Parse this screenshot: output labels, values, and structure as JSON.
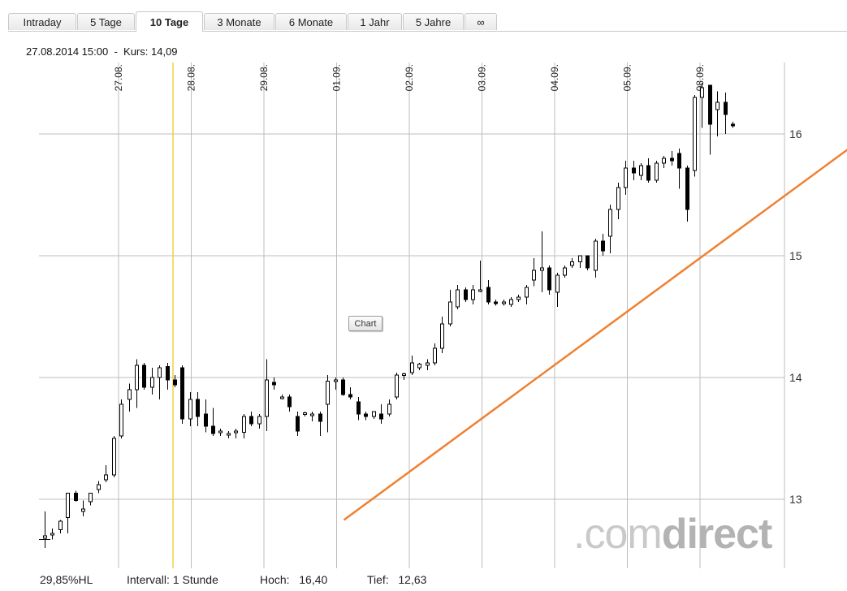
{
  "tabs": [
    {
      "label": "Intraday",
      "active": false
    },
    {
      "label": "5 Tage",
      "active": false
    },
    {
      "label": "10 Tage",
      "active": true
    },
    {
      "label": "3 Monate",
      "active": false
    },
    {
      "label": "6 Monate",
      "active": false
    },
    {
      "label": "1 Jahr",
      "active": false
    },
    {
      "label": "5 Jahre",
      "active": false
    },
    {
      "label": "∞",
      "active": false
    }
  ],
  "info": {
    "datetime": "27.08.2014 15:00",
    "separator": "-",
    "kurs_label": "Kurs:",
    "kurs_value": "14,09"
  },
  "chart_button": "Chart",
  "watermark": {
    "prefix": ".com",
    "suffix": "direct"
  },
  "footer": {
    "indicator": "29,85%HL",
    "intervall_label": "Intervall:",
    "intervall_value": "1 Stunde",
    "hoch_label": "Hoch:",
    "hoch_value": "16,40",
    "tief_label": "Tief:",
    "tief_value": "12,63"
  },
  "colors": {
    "grid": "#bdbdbd",
    "candle": "#000000",
    "trendline": "#f08030",
    "cursor": "#f0d040"
  },
  "chart_data": {
    "type": "candlestick",
    "interval": "1 Stunde",
    "ylim": [
      12.3,
      16.6
    ],
    "y_ticks": [
      13,
      14,
      15,
      16
    ],
    "y_tick_labels": [
      "13",
      "14",
      "15",
      "16"
    ],
    "x_labels": [
      "27.08.",
      "28.08.",
      "29.08.",
      "01.09.",
      "02.09.",
      "03.09.",
      "04.09.",
      "05.09.",
      "08.09."
    ],
    "candles_per_day": 9,
    "cursor": {
      "datetime": "27.08.2014 15:00",
      "value": 14.09
    },
    "trendline": {
      "start": [
        3.1,
        12.83
      ],
      "end": [
        10.55,
        16.1
      ]
    },
    "ohlc": [
      [
        12.68,
        12.9,
        12.6,
        12.7
      ],
      [
        12.72,
        12.76,
        12.67,
        12.72
      ],
      [
        12.75,
        12.83,
        12.72,
        12.82
      ],
      [
        12.85,
        13.05,
        12.72,
        13.05
      ],
      [
        13.05,
        13.07,
        12.98,
        12.99
      ],
      [
        12.9,
        12.99,
        12.86,
        12.92
      ],
      [
        12.98,
        13.05,
        12.95,
        13.05
      ],
      [
        13.08,
        13.15,
        13.05,
        13.12
      ],
      [
        13.16,
        13.28,
        13.14,
        13.2
      ],
      [
        13.2,
        13.52,
        13.18,
        13.5
      ],
      [
        13.52,
        13.82,
        13.5,
        13.78
      ],
      [
        13.82,
        13.95,
        13.72,
        13.9
      ],
      [
        13.9,
        14.15,
        13.75,
        14.1
      ],
      [
        14.1,
        14.12,
        13.9,
        13.92
      ],
      [
        13.92,
        14.08,
        13.86,
        14.0
      ],
      [
        14.0,
        14.1,
        13.82,
        14.08
      ],
      [
        14.09,
        14.12,
        13.9,
        13.98
      ],
      [
        13.98,
        14.02,
        13.92,
        13.94
      ],
      [
        14.08,
        14.1,
        13.62,
        13.66
      ],
      [
        13.66,
        13.88,
        13.6,
        13.82
      ],
      [
        13.82,
        13.88,
        13.6,
        13.68
      ],
      [
        13.7,
        13.82,
        13.55,
        13.6
      ],
      [
        13.6,
        13.75,
        13.52,
        13.54
      ],
      [
        13.55,
        13.58,
        13.52,
        13.56
      ],
      [
        13.54,
        13.56,
        13.5,
        13.54
      ],
      [
        13.55,
        13.58,
        13.5,
        13.56
      ],
      [
        13.55,
        13.7,
        13.5,
        13.68
      ],
      [
        13.68,
        13.72,
        13.6,
        13.62
      ],
      [
        13.62,
        13.7,
        13.58,
        13.68
      ],
      [
        13.68,
        14.15,
        13.56,
        13.98
      ],
      [
        13.96,
        14.0,
        13.9,
        13.94
      ],
      [
        13.84,
        13.86,
        13.82,
        13.84
      ],
      [
        13.84,
        13.86,
        13.72,
        13.76
      ],
      [
        13.68,
        13.72,
        13.52,
        13.56
      ],
      [
        13.7,
        13.72,
        13.68,
        13.71
      ],
      [
        13.7,
        13.72,
        13.64,
        13.7
      ],
      [
        13.7,
        13.72,
        13.52,
        13.64
      ],
      [
        13.78,
        14.02,
        13.55,
        13.97
      ],
      [
        13.97,
        14.0,
        13.9,
        13.98
      ],
      [
        13.98,
        14.0,
        13.85,
        13.86
      ],
      [
        13.86,
        13.92,
        13.82,
        13.84
      ],
      [
        13.8,
        13.84,
        13.65,
        13.7
      ],
      [
        13.7,
        13.72,
        13.65,
        13.68
      ],
      [
        13.68,
        13.72,
        13.66,
        13.72
      ],
      [
        13.7,
        13.78,
        13.62,
        13.66
      ],
      [
        13.7,
        13.82,
        13.68,
        13.78
      ],
      [
        13.84,
        14.04,
        13.82,
        14.02
      ],
      [
        14.02,
        14.04,
        13.98,
        14.03
      ],
      [
        14.04,
        14.18,
        14.02,
        14.12
      ],
      [
        14.08,
        14.12,
        14.06,
        14.11
      ],
      [
        14.1,
        14.15,
        14.06,
        14.12
      ],
      [
        14.12,
        14.28,
        14.1,
        14.24
      ],
      [
        14.24,
        14.5,
        14.2,
        14.44
      ],
      [
        14.44,
        14.72,
        14.42,
        14.62
      ],
      [
        14.58,
        14.76,
        14.56,
        14.72
      ],
      [
        14.72,
        14.74,
        14.62,
        14.64
      ],
      [
        14.64,
        14.76,
        14.6,
        14.72
      ],
      [
        14.72,
        14.96,
        14.7,
        14.72
      ],
      [
        14.74,
        14.8,
        14.6,
        14.62
      ],
      [
        14.62,
        14.64,
        14.59,
        14.61
      ],
      [
        14.61,
        14.64,
        14.59,
        14.62
      ],
      [
        14.6,
        14.66,
        14.58,
        14.64
      ],
      [
        14.64,
        14.68,
        14.62,
        14.66
      ],
      [
        14.66,
        14.76,
        14.6,
        14.74
      ],
      [
        14.8,
        14.98,
        14.75,
        14.88
      ],
      [
        14.88,
        15.2,
        14.7,
        14.9
      ],
      [
        14.9,
        14.92,
        14.68,
        14.72
      ],
      [
        14.7,
        14.86,
        14.58,
        14.84
      ],
      [
        14.84,
        14.92,
        14.82,
        14.9
      ],
      [
        14.92,
        14.98,
        14.9,
        14.95
      ],
      [
        14.95,
        15.0,
        14.9,
        15.0
      ],
      [
        15.0,
        15.0,
        14.88,
        14.9
      ],
      [
        14.88,
        15.14,
        14.82,
        15.12
      ],
      [
        15.12,
        15.18,
        15.0,
        15.04
      ],
      [
        15.16,
        15.42,
        15.02,
        15.38
      ],
      [
        15.38,
        15.6,
        15.3,
        15.56
      ],
      [
        15.56,
        15.78,
        15.5,
        15.72
      ],
      [
        15.72,
        15.78,
        15.62,
        15.68
      ],
      [
        15.66,
        15.76,
        15.62,
        15.74
      ],
      [
        15.74,
        15.8,
        15.6,
        15.62
      ],
      [
        15.62,
        15.78,
        15.6,
        15.76
      ],
      [
        15.76,
        15.82,
        15.72,
        15.8
      ],
      [
        15.8,
        15.86,
        15.74,
        15.78
      ],
      [
        15.84,
        15.88,
        15.55,
        15.72
      ],
      [
        15.72,
        15.74,
        15.28,
        15.38
      ],
      [
        15.7,
        16.32,
        15.65,
        16.3
      ],
      [
        16.3,
        16.42,
        16.05,
        16.38
      ],
      [
        16.4,
        16.4,
        15.83,
        16.08
      ],
      [
        16.2,
        16.35,
        15.98,
        16.26
      ],
      [
        16.26,
        16.34,
        16.0,
        16.16
      ],
      [
        16.08,
        16.1,
        16.05,
        16.07
      ]
    ]
  }
}
